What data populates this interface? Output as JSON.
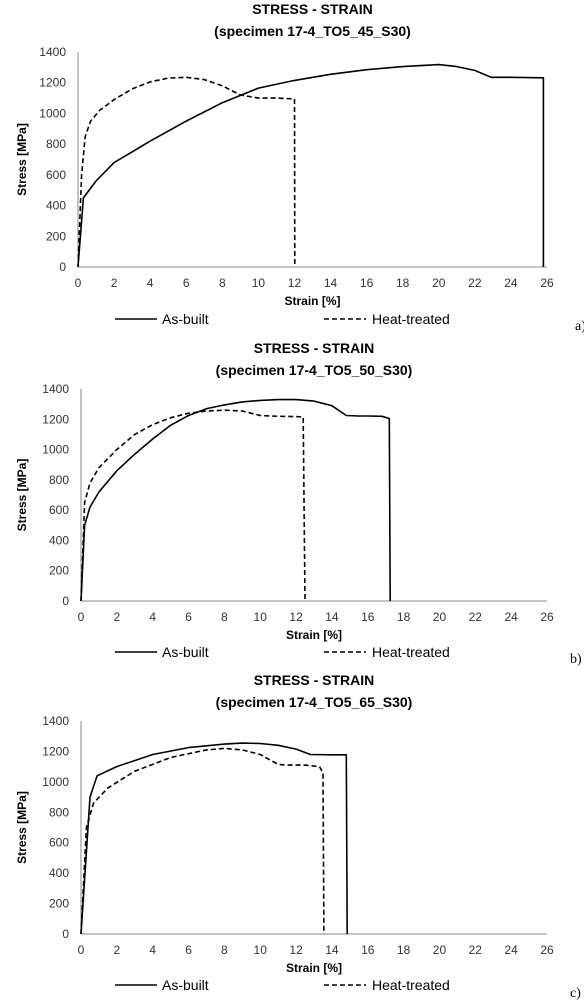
{
  "chart_data": [
    {
      "type": "line",
      "panel_label": "a)",
      "title": "STRESS - STRAIN",
      "subtitle": "(specimen 17-4_TO5_45_S30)",
      "xlabel": "Strain [%]",
      "ylabel": "Stress [MPa]",
      "xlim": [
        0,
        26
      ],
      "ylim": [
        0,
        1400
      ],
      "xticks": [
        "0",
        "2",
        "4",
        "6",
        "8",
        "10",
        "12",
        "14",
        "16",
        "18",
        "20",
        "22",
        "24",
        "26"
      ],
      "yticks": [
        "0",
        "200",
        "400",
        "600",
        "800",
        "1000",
        "1200",
        "1400"
      ],
      "grid": false,
      "legend_position": "bottom",
      "series": [
        {
          "name": "As-built",
          "style": "solid",
          "x": [
            0,
            0.3,
            1,
            2,
            4,
            6,
            8,
            10,
            12,
            14,
            16,
            18,
            20,
            21,
            22,
            22.9,
            24,
            25.8,
            25.8
          ],
          "y": [
            0,
            450,
            560,
            680,
            820,
            950,
            1070,
            1165,
            1215,
            1255,
            1285,
            1305,
            1318,
            1305,
            1280,
            1235,
            1235,
            1232,
            0
          ]
        },
        {
          "name": "Heat-treated",
          "style": "dashed",
          "x": [
            0,
            0.2,
            0.4,
            0.7,
            1.2,
            2,
            3,
            4,
            5,
            6,
            7,
            8,
            9,
            10,
            11,
            11.9,
            12,
            12.02
          ],
          "y": [
            0,
            600,
            850,
            950,
            1020,
            1090,
            1160,
            1205,
            1230,
            1235,
            1220,
            1180,
            1120,
            1100,
            1100,
            1095,
            1095,
            0
          ]
        }
      ]
    },
    {
      "type": "line",
      "panel_label": "b)",
      "title": "STRESS - STRAIN",
      "subtitle": "(specimen 17-4_TO5_50_S30)",
      "xlabel": "Strain [%]",
      "ylabel": "Stress [MPa]",
      "xlim": [
        0,
        26
      ],
      "ylim": [
        0,
        1400
      ],
      "xticks": [
        "0",
        "2",
        "4",
        "6",
        "8",
        "10",
        "12",
        "14",
        "16",
        "18",
        "20",
        "22",
        "24",
        "26"
      ],
      "yticks": [
        "0",
        "200",
        "400",
        "600",
        "800",
        "1000",
        "1200",
        "1400"
      ],
      "grid": false,
      "legend_position": "bottom",
      "series": [
        {
          "name": "As-built",
          "style": "solid",
          "x": [
            0,
            0.2,
            0.5,
            1,
            2,
            3,
            4,
            5,
            6,
            7,
            8,
            9,
            10,
            11,
            12,
            13,
            14,
            14.8,
            15.5,
            16,
            16.8,
            17.2,
            17.25
          ],
          "y": [
            0,
            500,
            620,
            720,
            860,
            970,
            1070,
            1160,
            1225,
            1270,
            1295,
            1315,
            1325,
            1330,
            1330,
            1320,
            1290,
            1225,
            1222,
            1222,
            1220,
            1205,
            0
          ]
        },
        {
          "name": "Heat-treated",
          "style": "dashed",
          "x": [
            0,
            0.2,
            0.5,
            1,
            2,
            3,
            4,
            5,
            6,
            7,
            8,
            9,
            10,
            11,
            12,
            12.4,
            12.5
          ],
          "y": [
            0,
            650,
            780,
            880,
            1000,
            1100,
            1165,
            1210,
            1240,
            1255,
            1260,
            1255,
            1225,
            1220,
            1218,
            1215,
            0
          ]
        }
      ]
    },
    {
      "type": "line",
      "panel_label": "c)",
      "title": "STRESS - STRAIN",
      "subtitle": "(specimen 17-4_TO5_65_S30)",
      "xlabel": "Strain [%]",
      "ylabel": "Stress [MPa]",
      "xlim": [
        0,
        26
      ],
      "ylim": [
        0,
        1400
      ],
      "xticks": [
        "0",
        "2",
        "4",
        "6",
        "8",
        "10",
        "12",
        "14",
        "16",
        "18",
        "20",
        "22",
        "24",
        "26"
      ],
      "yticks": [
        "0",
        "200",
        "400",
        "600",
        "800",
        "1000",
        "1200",
        "1400"
      ],
      "grid": false,
      "legend_position": "bottom",
      "series": [
        {
          "name": "As-built",
          "style": "solid",
          "x": [
            0,
            0.5,
            0.9,
            2,
            4,
            6,
            8,
            9,
            10,
            11,
            12,
            12.8,
            14,
            14.8,
            14.85
          ],
          "y": [
            0,
            900,
            1040,
            1100,
            1180,
            1225,
            1248,
            1255,
            1252,
            1240,
            1215,
            1180,
            1178,
            1178,
            0
          ]
        },
        {
          "name": "Heat-treated",
          "style": "dashed",
          "x": [
            0,
            0.3,
            0.7,
            1.5,
            3,
            5,
            7,
            8,
            9,
            10,
            11,
            11.5,
            12.5,
            13.3,
            13.5,
            13.55
          ],
          "y": [
            0,
            700,
            860,
            960,
            1070,
            1160,
            1210,
            1220,
            1210,
            1180,
            1115,
            1110,
            1110,
            1100,
            1060,
            0
          ]
        }
      ]
    }
  ]
}
